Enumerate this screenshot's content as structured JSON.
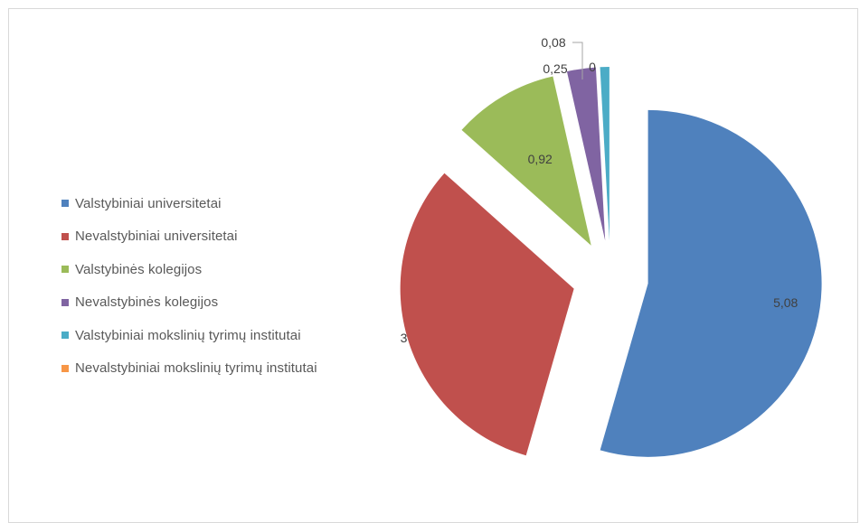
{
  "chart_data": {
    "type": "pie",
    "title": "",
    "categories": [
      "Valstybiniai universitetai",
      "Nevalstybiniai universitetai",
      "Valstybinės kolegijos",
      "Nevalstybinės kolegijos",
      "Valstybiniai mokslinių tyrimų institutai",
      "Nevalstybiniai mokslinių tyrimų institutai"
    ],
    "values": [
      5.08,
      3,
      0.92,
      0.25,
      0.08,
      0
    ],
    "data_labels": [
      "5,08",
      "3",
      "0,92",
      "0,25",
      "0,08",
      "0"
    ],
    "colors": [
      "#4f81bd",
      "#c0504d",
      "#9bbb59",
      "#8064a2",
      "#4bacc6",
      "#f79646"
    ],
    "exploded": true,
    "legend": {
      "position": "left"
    }
  }
}
